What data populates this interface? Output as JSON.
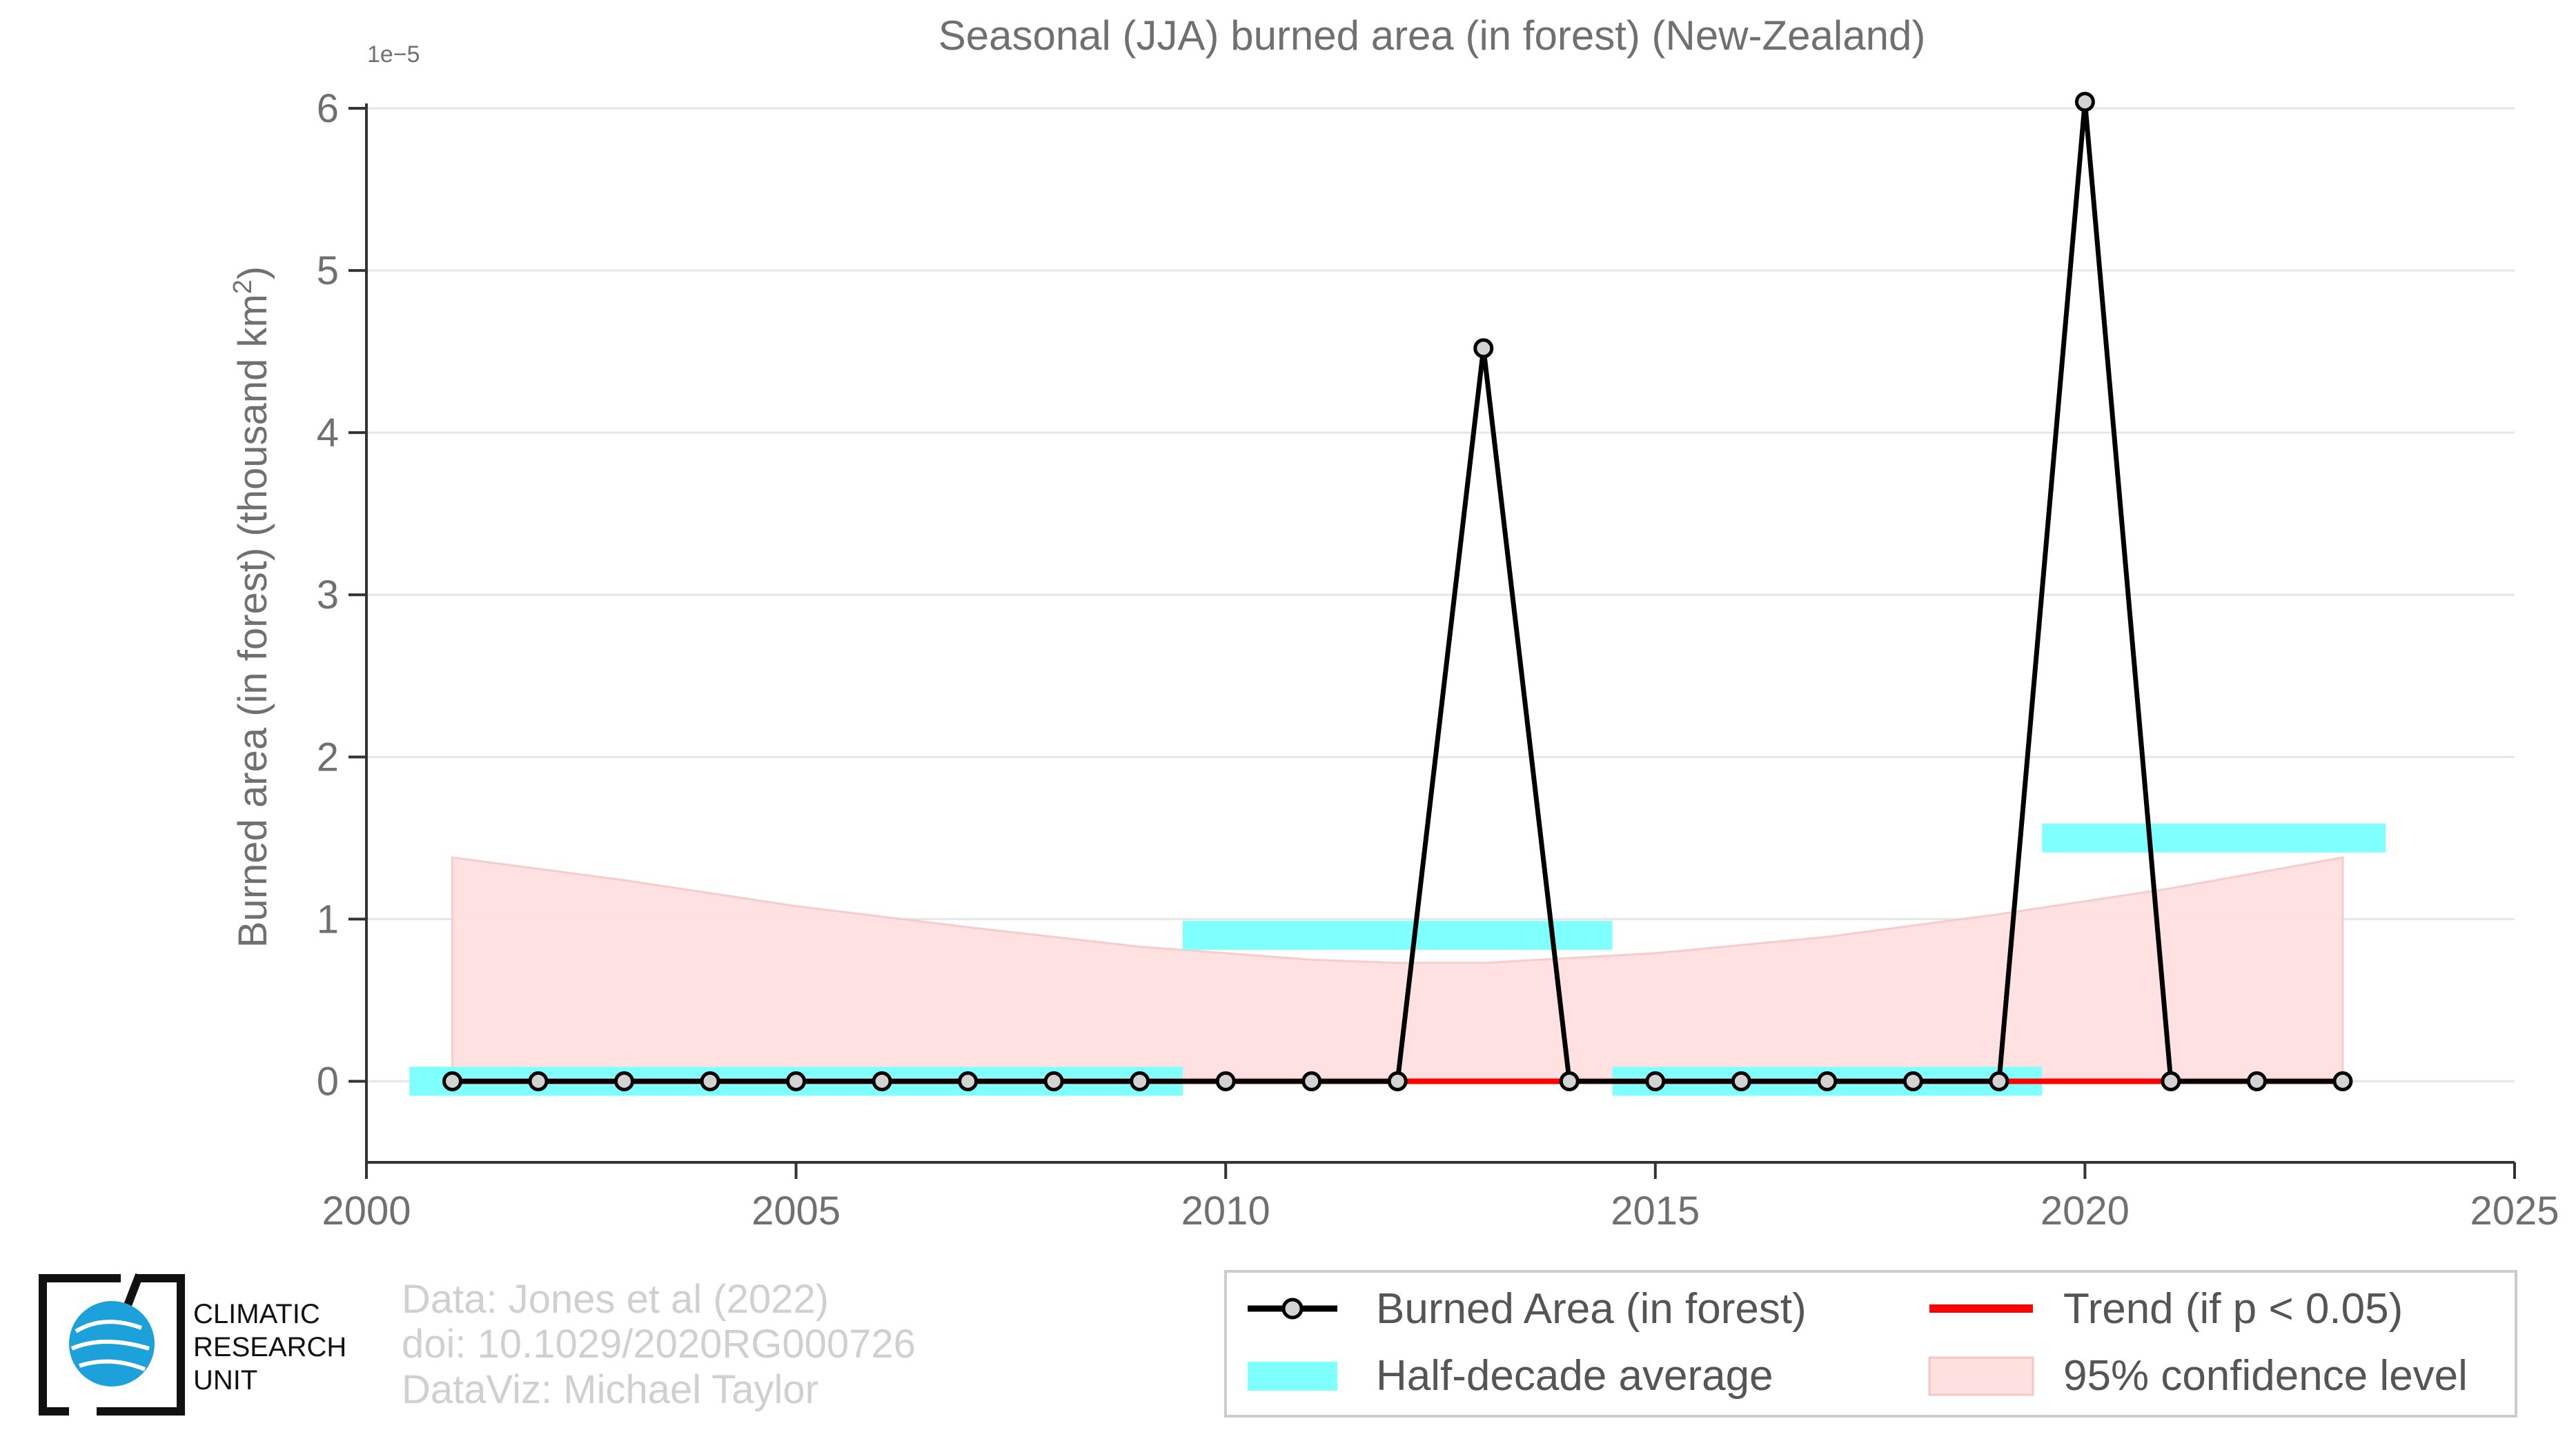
{
  "chart_data": {
    "type": "line",
    "title": "Seasonal (JJA) burned area (in forest) (New-Zealand)",
    "ylabel": "Burned area (in forest) (thousand km",
    "ylabel_sup": "2",
    "ylabel_close": ")",
    "y_exponent": "1e−5",
    "xlim": [
      2000,
      2025
    ],
    "ylim": [
      -0.5,
      6.2
    ],
    "x_ticks": [
      2000,
      2005,
      2010,
      2015,
      2020,
      2025
    ],
    "x_tick_labels": [
      "2000",
      "2005",
      "2010",
      "2015",
      "2020",
      "2025"
    ],
    "y_ticks": [
      0,
      1,
      2,
      3,
      4,
      5,
      6
    ],
    "y_tick_labels": [
      "0",
      "1",
      "2",
      "3",
      "4",
      "5",
      "6"
    ],
    "grid": "horizontal",
    "series": [
      {
        "name": "Burned Area (in forest)",
        "color": "#000000",
        "x": [
          2001,
          2002,
          2003,
          2004,
          2005,
          2006,
          2007,
          2008,
          2009,
          2010,
          2011,
          2012,
          2013,
          2014,
          2015,
          2016,
          2017,
          2018,
          2019,
          2020,
          2021,
          2022,
          2023
        ],
        "y": [
          0,
          0,
          0,
          0,
          0,
          0,
          0,
          0,
          0,
          0,
          0,
          0,
          4.52,
          0,
          0,
          0,
          0,
          0,
          0,
          6.04,
          0,
          0,
          0
        ]
      },
      {
        "name": "Trend (if p < 0.05)",
        "color": "#ff0000",
        "x": [
          2001,
          2023
        ],
        "y": [
          0,
          0
        ]
      }
    ],
    "half_decade_average": {
      "name": "Half-decade average",
      "color": "#80ffff",
      "segments": [
        {
          "x0": 2000.5,
          "x1": 2009.5,
          "y": 0.0
        },
        {
          "x0": 2009.5,
          "x1": 2014.5,
          "y": 0.9
        },
        {
          "x0": 2014.5,
          "x1": 2019.5,
          "y": 0.0
        },
        {
          "x0": 2019.5,
          "x1": 2023.5,
          "y": 1.5
        }
      ]
    },
    "confidence_band": {
      "name": "95% confidence level",
      "color": "#ffe0e0",
      "x": [
        2001,
        2003,
        2005,
        2007,
        2009,
        2011,
        2012,
        2013,
        2015,
        2017,
        2019,
        2021,
        2023
      ],
      "upper": [
        1.38,
        1.24,
        1.08,
        0.95,
        0.83,
        0.75,
        0.73,
        0.73,
        0.79,
        0.89,
        1.03,
        1.19,
        1.38
      ],
      "lower": [
        0,
        0,
        0,
        0,
        0,
        0,
        0,
        0,
        0,
        0,
        0,
        0,
        0
      ]
    },
    "legend": {
      "placement": "bottom-right",
      "entries": [
        "Burned Area (in forest)",
        "Trend (if p < 0.05)",
        "Half-decade average",
        "95% confidence level"
      ]
    }
  },
  "credits": {
    "line1": "Data: Jones et al (2022)",
    "line2": "doi: 10.1029/2020RG000726",
    "line3": "DataViz: Michael Taylor"
  },
  "logo": {
    "line1": "CLIMATIC",
    "line2": "RESEARCH",
    "line3": "UNIT",
    "color": "#1da1db"
  }
}
